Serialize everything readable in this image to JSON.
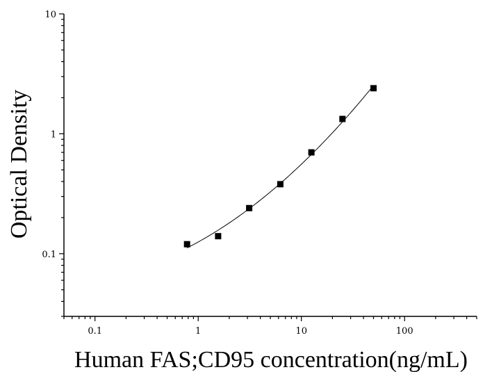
{
  "chart_data": {
    "type": "scatter",
    "title": "",
    "xlabel": "Human FAS;CD95 concentration(ng/mL)",
    "ylabel": "Optical Density",
    "x_scale": "log",
    "y_scale": "log",
    "xlim": [
      0.05,
      500
    ],
    "ylim": [
      0.03,
      10
    ],
    "x_ticks": [
      {
        "value": 0.1,
        "label": "0.1"
      },
      {
        "value": 1,
        "label": "1"
      },
      {
        "value": 10,
        "label": "10"
      },
      {
        "value": 100,
        "label": "100"
      }
    ],
    "y_ticks": [
      {
        "value": 0.1,
        "label": "0.1"
      },
      {
        "value": 1,
        "label": "1"
      },
      {
        "value": 10,
        "label": "10"
      }
    ],
    "grid": false,
    "legend": "none",
    "marker": "square",
    "color": "#000000",
    "series": [
      {
        "points": [
          {
            "x": 0.78,
            "y": 0.12
          },
          {
            "x": 1.56,
            "y": 0.14
          },
          {
            "x": 3.12,
            "y": 0.24
          },
          {
            "x": 6.25,
            "y": 0.38
          },
          {
            "x": 12.5,
            "y": 0.7
          },
          {
            "x": 25,
            "y": 1.33
          },
          {
            "x": 50,
            "y": 2.4
          }
        ]
      }
    ],
    "fit_curve": {
      "type": "four-parameter logistic",
      "x_range": [
        0.78,
        50
      ]
    }
  }
}
